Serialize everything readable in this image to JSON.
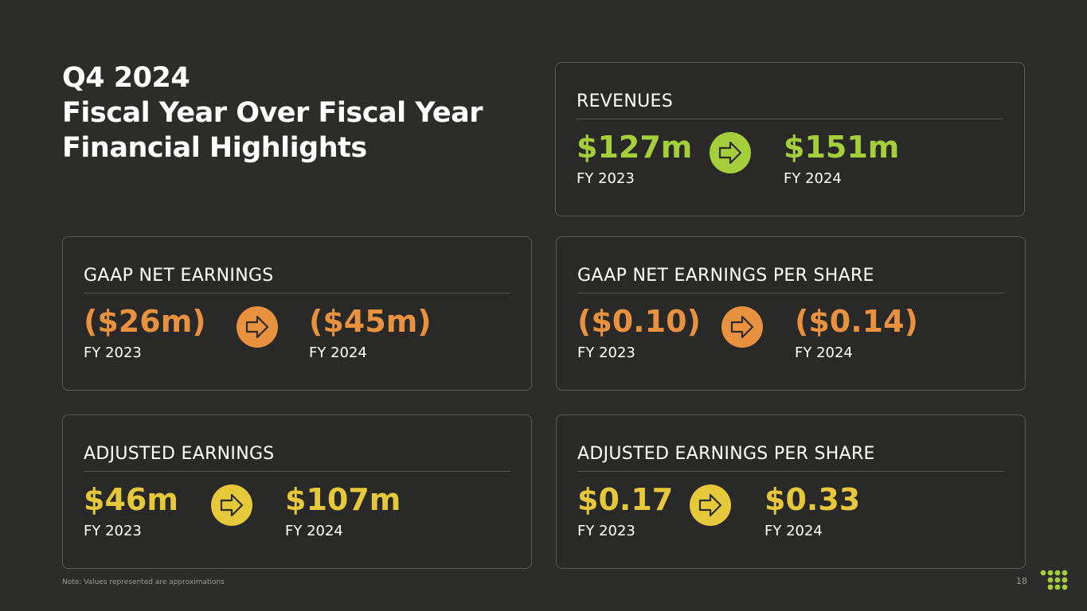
{
  "title": [
    "Q4 2024",
    "Fiscal Year Over Fiscal Year",
    "Financial Highlights"
  ],
  "cards": [
    {
      "heading": "REVENUES",
      "color": "#a4cf3b",
      "from": {
        "value": "$127m",
        "label": "FY 2023"
      },
      "to": {
        "value": "$151m",
        "label": "FY 2024"
      }
    },
    {
      "heading": "GAAP NET EARNINGS",
      "color": "#e8913f",
      "from": {
        "value": "($26m)",
        "label": "FY 2023"
      },
      "to": {
        "value": "($45m)",
        "label": "FY 2024"
      }
    },
    {
      "heading": "GAAP NET EARNINGS PER SHARE",
      "color": "#e8913f",
      "from": {
        "value": "($0.10)",
        "label": "FY 2023"
      },
      "to": {
        "value": "($0.14)",
        "label": "FY 2024"
      }
    },
    {
      "heading": "ADJUSTED EARNINGS",
      "color": "#e6c83b",
      "from": {
        "value": "$46m",
        "label": "FY 2023"
      },
      "to": {
        "value": "$107m",
        "label": "FY 2024"
      }
    },
    {
      "heading": "ADJUSTED EARNINGS PER SHARE",
      "color": "#e6c83b",
      "from": {
        "value": "$0.17",
        "label": "FY 2023"
      },
      "to": {
        "value": "$0.33",
        "label": "FY 2024"
      }
    }
  ],
  "note": "Note: Values represented are approximations",
  "page_number": "18"
}
